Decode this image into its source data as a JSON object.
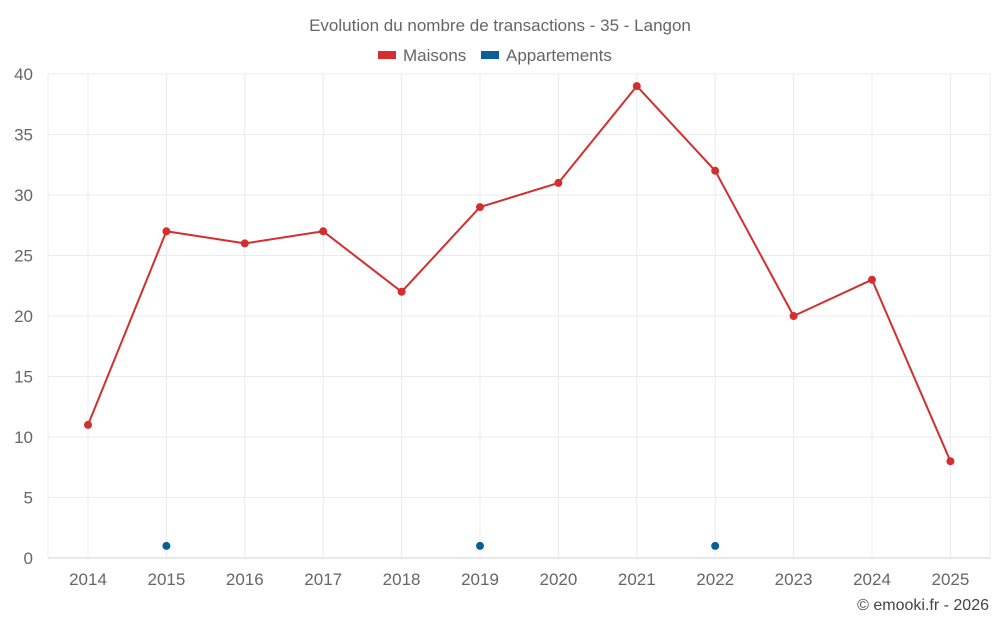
{
  "chart_data": {
    "type": "line",
    "title": "Evolution du nombre de transactions - 35 - Langon",
    "categories": [
      "2014",
      "2015",
      "2016",
      "2017",
      "2018",
      "2019",
      "2020",
      "2021",
      "2022",
      "2023",
      "2024",
      "2025"
    ],
    "series": [
      {
        "name": "Maisons",
        "color": "#d32f2f",
        "values": [
          11,
          27,
          26,
          27,
          22,
          29,
          31,
          39,
          32,
          20,
          23,
          8
        ]
      },
      {
        "name": "Appartements",
        "color": "#0b5e96",
        "values": [
          null,
          1,
          null,
          null,
          null,
          1,
          null,
          null,
          1,
          null,
          null,
          null
        ]
      }
    ],
    "ylim": [
      0,
      40
    ],
    "yticks": [
      "0",
      "5",
      "10",
      "15",
      "20",
      "25",
      "30",
      "35",
      "40"
    ],
    "ytick_values": [
      0,
      5,
      10,
      15,
      20,
      25,
      30,
      35,
      40
    ],
    "grid": true,
    "legend_position": "top-center",
    "xlabel": "",
    "ylabel": ""
  },
  "credit": "© emooki.fr - 2026"
}
